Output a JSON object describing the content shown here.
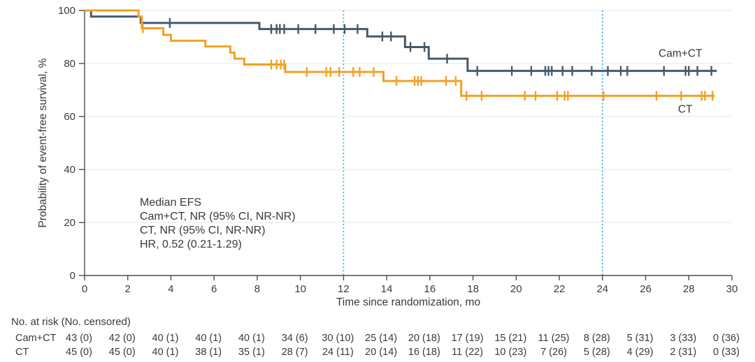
{
  "figure": {
    "background": "#ffffff",
    "text_color": "#3a3a3a"
  },
  "chart_data": {
    "type": "line",
    "variant": "kaplan_meier_step",
    "title": "",
    "xlabel": "Time since randomization, mo",
    "ylabel": "Probability of event-free survival, %",
    "xlim": [
      0,
      30
    ],
    "ylim": [
      0,
      100
    ],
    "x_ticks": [
      0,
      2,
      4,
      6,
      8,
      10,
      12,
      14,
      16,
      18,
      20,
      22,
      24,
      26,
      28,
      30
    ],
    "y_ticks": [
      0,
      20,
      40,
      60,
      80,
      100
    ],
    "grid": "horizontal",
    "gridline_color": "#ececec",
    "axis_color": "#4d4d4d",
    "reference_lines": {
      "x_values": [
        12,
        24
      ],
      "style": "dotted",
      "color": "#35ace0"
    },
    "series": [
      {
        "name": "Cam+CT",
        "color": "#455a6b",
        "label": {
          "text": "Cam+CT",
          "x_mo": 26.6,
          "y_pct": 82.5
        },
        "steps": [
          [
            0,
            100
          ],
          [
            0.3,
            97.7
          ],
          [
            2.6,
            95.3
          ],
          [
            8.1,
            93.0
          ],
          [
            13.1,
            90.2
          ],
          [
            14.85,
            86.2
          ],
          [
            15.95,
            81.8
          ],
          [
            17.75,
            77.2
          ]
        ],
        "end_x_mo": 29.3,
        "censor_marks": [
          [
            3.95,
            95.3
          ],
          [
            8.65,
            93.0
          ],
          [
            8.9,
            93.0
          ],
          [
            9.05,
            93.0
          ],
          [
            9.25,
            93.0
          ],
          [
            9.9,
            93.0
          ],
          [
            10.7,
            93.0
          ],
          [
            11.55,
            93.0
          ],
          [
            12.05,
            93.0
          ],
          [
            12.65,
            93.0
          ],
          [
            13.8,
            90.2
          ],
          [
            14.2,
            90.2
          ],
          [
            15.1,
            86.2
          ],
          [
            15.75,
            86.2
          ],
          [
            16.8,
            81.8
          ],
          [
            18.2,
            77.2
          ],
          [
            19.8,
            77.2
          ],
          [
            20.7,
            77.2
          ],
          [
            21.35,
            77.2
          ],
          [
            21.5,
            77.2
          ],
          [
            21.65,
            77.2
          ],
          [
            22.15,
            77.2
          ],
          [
            22.6,
            77.2
          ],
          [
            23.5,
            77.2
          ],
          [
            24.25,
            77.2
          ],
          [
            24.85,
            77.2
          ],
          [
            25.15,
            77.2
          ],
          [
            26.85,
            77.2
          ],
          [
            27.85,
            77.2
          ],
          [
            28.0,
            77.2
          ],
          [
            28.4,
            77.2
          ],
          [
            29.05,
            77.2
          ]
        ]
      },
      {
        "name": "CT",
        "color": "#f2a124",
        "label": {
          "text": "CT",
          "x_mo": 27.5,
          "y_pct": 61.5
        },
        "steps": [
          [
            0,
            100
          ],
          [
            2.5,
            97.7
          ],
          [
            2.65,
            93.3
          ],
          [
            3.65,
            90.8
          ],
          [
            4.0,
            88.6
          ],
          [
            5.6,
            86.4
          ],
          [
            6.75,
            84.1
          ],
          [
            6.95,
            81.8
          ],
          [
            7.4,
            79.6
          ],
          [
            9.3,
            76.8
          ],
          [
            13.85,
            73.4
          ],
          [
            17.45,
            67.8
          ]
        ],
        "end_x_mo": 29.2,
        "censor_marks": [
          [
            2.7,
            93.3
          ],
          [
            8.65,
            79.6
          ],
          [
            8.9,
            79.6
          ],
          [
            9.1,
            79.6
          ],
          [
            9.25,
            79.6
          ],
          [
            10.3,
            76.8
          ],
          [
            11.2,
            76.8
          ],
          [
            11.4,
            76.8
          ],
          [
            11.8,
            76.8
          ],
          [
            12.45,
            76.8
          ],
          [
            12.75,
            76.8
          ],
          [
            13.4,
            76.8
          ],
          [
            14.45,
            73.4
          ],
          [
            15.3,
            73.4
          ],
          [
            15.45,
            73.4
          ],
          [
            15.6,
            73.4
          ],
          [
            16.75,
            73.4
          ],
          [
            17.2,
            73.4
          ],
          [
            17.7,
            67.8
          ],
          [
            18.4,
            67.8
          ],
          [
            20.4,
            67.8
          ],
          [
            20.9,
            67.8
          ],
          [
            21.9,
            67.8
          ],
          [
            22.25,
            67.8
          ],
          [
            22.4,
            67.8
          ],
          [
            24.05,
            67.8
          ],
          [
            26.5,
            67.8
          ],
          [
            27.65,
            67.8
          ],
          [
            28.6,
            67.8
          ],
          [
            28.75,
            67.8
          ],
          [
            29.1,
            67.8
          ]
        ]
      }
    ],
    "annotation": {
      "lines": [
        "Median EFS",
        "Cam+CT, NR (95% CI, NR-NR)",
        "CT, NR (95% CI, NR-NR)",
        "HR, 0.52 (0.21-1.29)"
      ]
    },
    "risk_table": {
      "header": "No. at risk (No. censored)",
      "time_points": [
        0,
        2,
        4,
        6,
        8,
        10,
        12,
        14,
        16,
        18,
        20,
        22,
        24,
        26,
        28,
        30
      ],
      "rows": [
        {
          "label": "Cam+CT",
          "values": [
            "43 (0)",
            "42 (0)",
            "40 (1)",
            "40 (1)",
            "40 (1)",
            "34 (6)",
            "30 (10)",
            "25 (14)",
            "20 (18)",
            "17 (19)",
            "15 (21)",
            "11 (25)",
            "8 (28)",
            "5 (31)",
            "3 (33)",
            "0 (36)"
          ]
        },
        {
          "label": "CT",
          "values": [
            "45 (0)",
            "45 (0)",
            "40 (1)",
            "38 (1)",
            "35 (1)",
            "28 (7)",
            "24 (11)",
            "20 (14)",
            "16 (18)",
            "11 (22)",
            "10 (23)",
            "7 (26)",
            "5 (28)",
            "4 (29)",
            "2 (31)",
            "0 (33)"
          ]
        }
      ]
    }
  }
}
